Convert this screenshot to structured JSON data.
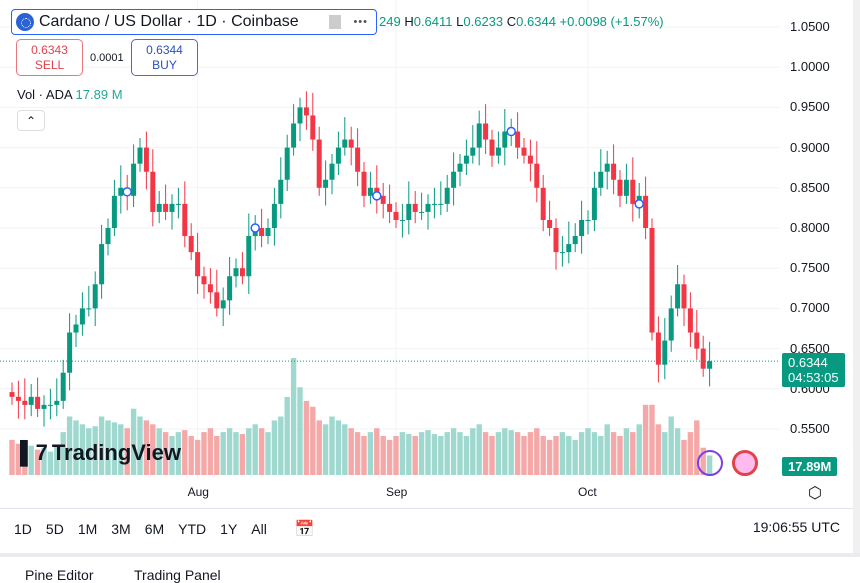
{
  "header": {
    "symbol": "Cardano / US Dollar · 1D · Coinbase",
    "more": "•••",
    "ohlc": {
      "o_partial": "249",
      "h_label": "H",
      "h": "0.6411",
      "l_label": "L",
      "l": "0.6233",
      "c_label": "C",
      "c": "0.6344",
      "change": "+0.0098 (+1.57%)"
    }
  },
  "trade": {
    "sell_price": "0.6343",
    "sell_label": "SELL",
    "spread": "0.0001",
    "buy_price": "0.6344",
    "buy_label": "BUY"
  },
  "volume_legend": {
    "label": "Vol · ADA",
    "value": "17.89 M"
  },
  "collapse_icon": "chevron-up-icon",
  "watermark": "TradingView",
  "price_axis": [
    "1.0500",
    "1.0000",
    "0.9500",
    "0.9000",
    "0.8500",
    "0.8000",
    "0.7500",
    "0.7000",
    "0.6500",
    "0.6000",
    "0.5500"
  ],
  "price_tag": {
    "price": "0.6344",
    "countdown": "04:53:05"
  },
  "volume_tag": "17.89M",
  "time_axis": [
    {
      "label": "Aug",
      "day": 29
    },
    {
      "label": "Sep",
      "day": 60
    },
    {
      "label": "Oct",
      "day": 90
    }
  ],
  "toolbar": {
    "ranges": [
      "1D",
      "5D",
      "1M",
      "3M",
      "6M",
      "YTD",
      "1Y",
      "All"
    ],
    "time": "19:06:55 UTC"
  },
  "bottom_panel": {
    "tabs": [
      "Pine Editor",
      "Trading Panel"
    ]
  },
  "colors": {
    "up": "#089981",
    "down": "#f23645",
    "vol_up": "#9fd8cf",
    "vol_down": "#f5a8a8"
  },
  "chart_data": {
    "type": "candlestick",
    "ylim": [
      0.53,
      1.07
    ],
    "closes": [
      0.59,
      0.585,
      0.58,
      0.59,
      0.575,
      0.58,
      0.58,
      0.585,
      0.62,
      0.67,
      0.68,
      0.7,
      0.7,
      0.73,
      0.78,
      0.8,
      0.84,
      0.85,
      0.84,
      0.88,
      0.9,
      0.87,
      0.82,
      0.83,
      0.82,
      0.83,
      0.83,
      0.79,
      0.77,
      0.74,
      0.73,
      0.72,
      0.7,
      0.71,
      0.74,
      0.75,
      0.74,
      0.79,
      0.8,
      0.79,
      0.8,
      0.83,
      0.86,
      0.9,
      0.93,
      0.95,
      0.94,
      0.91,
      0.85,
      0.86,
      0.88,
      0.9,
      0.91,
      0.9,
      0.87,
      0.84,
      0.85,
      0.84,
      0.83,
      0.82,
      0.81,
      0.81,
      0.83,
      0.82,
      0.82,
      0.83,
      0.83,
      0.83,
      0.85,
      0.87,
      0.88,
      0.89,
      0.9,
      0.93,
      0.91,
      0.89,
      0.9,
      0.92,
      0.92,
      0.9,
      0.89,
      0.88,
      0.85,
      0.81,
      0.8,
      0.77,
      0.77,
      0.78,
      0.79,
      0.81,
      0.81,
      0.85,
      0.87,
      0.88,
      0.86,
      0.84,
      0.86,
      0.83,
      0.84,
      0.8,
      0.67,
      0.63,
      0.66,
      0.7,
      0.73,
      0.7,
      0.67,
      0.65,
      0.625,
      0.6344
    ],
    "volumes": [
      18,
      16,
      14,
      15,
      13,
      14,
      12,
      15,
      22,
      30,
      28,
      26,
      24,
      25,
      30,
      28,
      27,
      26,
      24,
      34,
      30,
      28,
      26,
      24,
      22,
      20,
      22,
      23,
      20,
      18,
      22,
      24,
      20,
      22,
      24,
      22,
      21,
      24,
      26,
      24,
      22,
      28,
      30,
      40,
      60,
      45,
      38,
      35,
      28,
      26,
      30,
      28,
      26,
      24,
      22,
      20,
      22,
      24,
      20,
      18,
      20,
      22,
      21,
      20,
      22,
      23,
      21,
      20,
      22,
      24,
      22,
      20,
      24,
      26,
      22,
      20,
      22,
      24,
      23,
      22,
      20,
      22,
      24,
      20,
      18,
      20,
      22,
      20,
      18,
      22,
      24,
      22,
      20,
      26,
      22,
      20,
      24,
      22,
      26,
      36,
      36,
      26,
      22,
      30,
      24,
      18,
      22,
      28,
      14,
      10
    ]
  }
}
